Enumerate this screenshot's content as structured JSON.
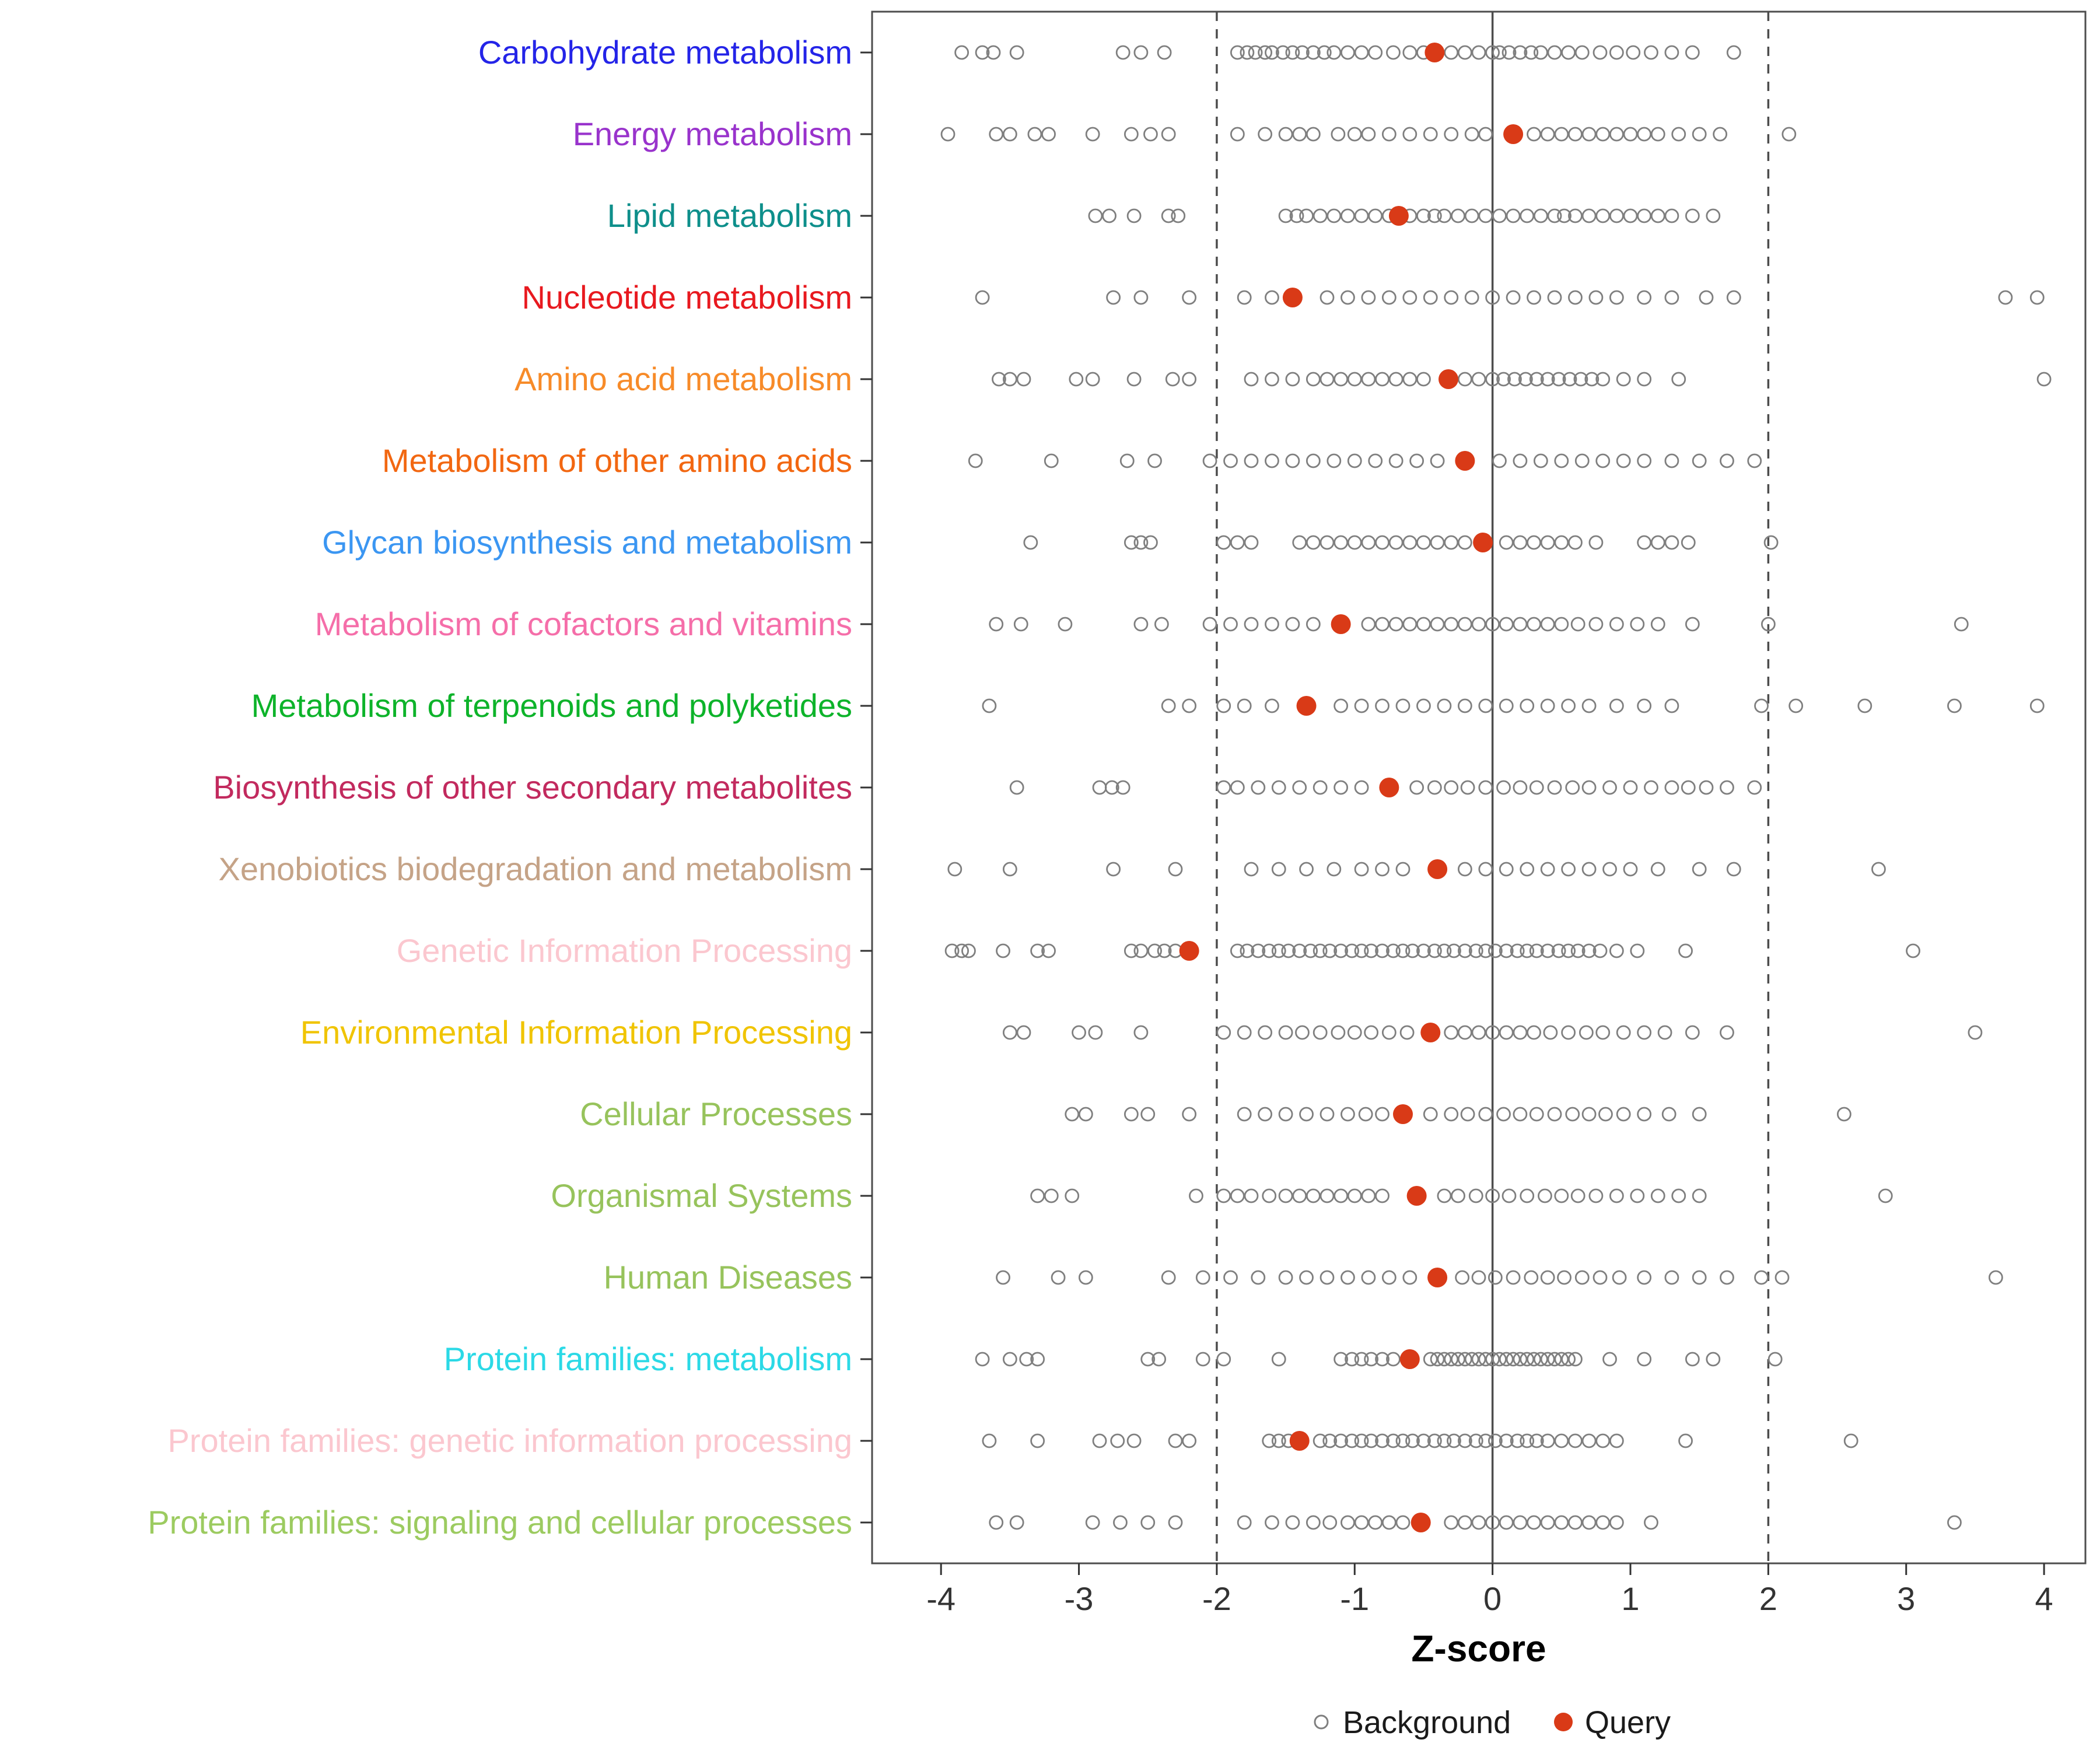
{
  "colors": {
    "background_point": "#7f7f7f",
    "query_point": "#d93a17",
    "panel_border": "#4d4d4d",
    "reference_line": "#4d4d4d",
    "axis_text": "#333333"
  },
  "chart_data": {
    "type": "scatter",
    "title": "",
    "xlabel": "Z-score",
    "ylabel": "",
    "xlim": [
      -4.5,
      4.3
    ],
    "x_ticks": [
      -4,
      -3,
      -2,
      -1,
      0,
      1,
      2,
      3,
      4
    ],
    "reference_lines": {
      "solid": [
        0
      ],
      "dashed": [
        -2,
        2
      ]
    },
    "legend": [
      {
        "label": "Background",
        "marker": "open-circle",
        "color": "#7f7f7f"
      },
      {
        "label": "Query",
        "marker": "filled-circle",
        "color": "#d93a17"
      }
    ],
    "categories": [
      {
        "label": "Carbohydrate metabolism",
        "color": "#2424e8",
        "query": -0.42,
        "background": [
          -3.85,
          -3.7,
          -3.62,
          -3.45,
          -2.68,
          -2.55,
          -2.38,
          -1.85,
          -1.78,
          -1.72,
          -1.65,
          -1.6,
          -1.52,
          -1.45,
          -1.38,
          -1.3,
          -1.22,
          -1.15,
          -1.05,
          -0.95,
          -0.85,
          -0.72,
          -0.6,
          -0.5,
          -0.3,
          -0.2,
          -0.1,
          0.0,
          0.05,
          0.12,
          0.2,
          0.28,
          0.35,
          0.45,
          0.55,
          0.65,
          0.78,
          0.9,
          1.02,
          1.15,
          1.3,
          1.45,
          1.75
        ]
      },
      {
        "label": "Energy metabolism",
        "color": "#9933cc",
        "query": 0.15,
        "background": [
          -3.95,
          -3.6,
          -3.5,
          -3.32,
          -3.22,
          -2.9,
          -2.62,
          -2.48,
          -2.35,
          -1.85,
          -1.65,
          -1.5,
          -1.4,
          -1.3,
          -1.12,
          -1.0,
          -0.9,
          -0.75,
          -0.6,
          -0.45,
          -0.3,
          -0.15,
          -0.05,
          0.3,
          0.4,
          0.5,
          0.6,
          0.7,
          0.8,
          0.9,
          1.0,
          1.1,
          1.2,
          1.35,
          1.5,
          1.65,
          2.15
        ]
      },
      {
        "label": "Lipid metabolism",
        "color": "#0e8f8b",
        "query": -0.68,
        "background": [
          -2.88,
          -2.78,
          -2.6,
          -2.35,
          -2.28,
          -1.5,
          -1.42,
          -1.35,
          -1.25,
          -1.15,
          -1.05,
          -0.95,
          -0.85,
          -0.75,
          -0.6,
          -0.5,
          -0.42,
          -0.35,
          -0.25,
          -0.15,
          -0.05,
          0.05,
          0.15,
          0.25,
          0.35,
          0.45,
          0.52,
          0.6,
          0.7,
          0.8,
          0.9,
          1.0,
          1.1,
          1.2,
          1.3,
          1.45,
          1.6
        ]
      },
      {
        "label": "Nucleotide metabolism",
        "color": "#e8191f",
        "query": -1.45,
        "background": [
          -3.7,
          -2.75,
          -2.55,
          -2.2,
          -1.8,
          -1.6,
          -1.2,
          -1.05,
          -0.9,
          -0.75,
          -0.6,
          -0.45,
          -0.3,
          -0.15,
          0.0,
          0.15,
          0.3,
          0.45,
          0.6,
          0.75,
          0.9,
          1.1,
          1.3,
          1.55,
          1.75,
          3.72,
          3.95
        ]
      },
      {
        "label": "Amino acid metabolism",
        "color": "#f78b29",
        "query": -0.32,
        "background": [
          -3.58,
          -3.5,
          -3.4,
          -3.02,
          -2.9,
          -2.6,
          -2.32,
          -2.2,
          -1.75,
          -1.6,
          -1.45,
          -1.3,
          -1.2,
          -1.1,
          -1.0,
          -0.9,
          -0.8,
          -0.7,
          -0.6,
          -0.5,
          -0.2,
          -0.1,
          0.0,
          0.08,
          0.16,
          0.24,
          0.32,
          0.4,
          0.48,
          0.56,
          0.64,
          0.72,
          0.8,
          0.95,
          1.1,
          1.35,
          4.0
        ]
      },
      {
        "label": "Metabolism of other amino acids",
        "color": "#f26711",
        "query": -0.2,
        "background": [
          -3.75,
          -3.2,
          -2.65,
          -2.45,
          -2.05,
          -1.9,
          -1.75,
          -1.6,
          -1.45,
          -1.3,
          -1.15,
          -1.0,
          -0.85,
          -0.7,
          -0.55,
          -0.4,
          0.05,
          0.2,
          0.35,
          0.5,
          0.65,
          0.8,
          0.95,
          1.1,
          1.3,
          1.5,
          1.7,
          1.9
        ]
      },
      {
        "label": "Glycan biosynthesis and metabolism",
        "color": "#3b96f2",
        "query": -0.07,
        "background": [
          -3.35,
          -2.62,
          -2.55,
          -2.48,
          -1.95,
          -1.85,
          -1.75,
          -1.4,
          -1.3,
          -1.2,
          -1.1,
          -1.0,
          -0.9,
          -0.8,
          -0.7,
          -0.6,
          -0.5,
          -0.4,
          -0.3,
          -0.2,
          0.1,
          0.2,
          0.3,
          0.4,
          0.5,
          0.6,
          0.75,
          1.1,
          1.2,
          1.3,
          1.42,
          2.02
        ]
      },
      {
        "label": "Metabolism of cofactors and vitamins",
        "color": "#f56ea9",
        "query": -1.1,
        "background": [
          -3.6,
          -3.42,
          -3.1,
          -2.55,
          -2.4,
          -2.05,
          -1.9,
          -1.75,
          -1.6,
          -1.45,
          -1.3,
          -0.9,
          -0.8,
          -0.7,
          -0.6,
          -0.5,
          -0.4,
          -0.3,
          -0.2,
          -0.1,
          0.0,
          0.1,
          0.2,
          0.3,
          0.4,
          0.5,
          0.62,
          0.75,
          0.9,
          1.05,
          1.2,
          1.45,
          2.0,
          3.4
        ]
      },
      {
        "label": "Metabolism of terpenoids and polyketides",
        "color": "#0db32a",
        "query": -1.35,
        "background": [
          -3.65,
          -2.35,
          -2.2,
          -1.95,
          -1.8,
          -1.6,
          -1.1,
          -0.95,
          -0.8,
          -0.65,
          -0.5,
          -0.35,
          -0.2,
          -0.05,
          0.1,
          0.25,
          0.4,
          0.55,
          0.7,
          0.9,
          1.1,
          1.3,
          1.95,
          2.2,
          2.7,
          3.35,
          3.95
        ]
      },
      {
        "label": "Biosynthesis of other secondary metabolites",
        "color": "#c22a5e",
        "query": -0.75,
        "background": [
          -3.45,
          -2.85,
          -2.76,
          -2.68,
          -1.95,
          -1.85,
          -1.7,
          -1.55,
          -1.4,
          -1.25,
          -1.1,
          -0.95,
          -0.55,
          -0.42,
          -0.3,
          -0.18,
          -0.05,
          0.08,
          0.2,
          0.32,
          0.45,
          0.58,
          0.7,
          0.85,
          1.0,
          1.15,
          1.3,
          1.42,
          1.55,
          1.7,
          1.9
        ]
      },
      {
        "label": "Xenobiotics biodegradation and metabolism",
        "color": "#c5a387",
        "query": -0.4,
        "background": [
          -3.9,
          -3.5,
          -2.75,
          -2.3,
          -1.75,
          -1.55,
          -1.35,
          -1.15,
          -0.95,
          -0.8,
          -0.65,
          -0.2,
          -0.05,
          0.1,
          0.25,
          0.4,
          0.55,
          0.7,
          0.85,
          1.0,
          1.2,
          1.5,
          1.75,
          2.8
        ]
      },
      {
        "label": "Genetic Information Processing",
        "color": "#fbc7cf",
        "query": -2.2,
        "background": [
          -3.92,
          -3.85,
          -3.8,
          -3.55,
          -3.3,
          -3.22,
          -2.62,
          -2.55,
          -2.45,
          -2.38,
          -2.3,
          -1.85,
          -1.78,
          -1.7,
          -1.62,
          -1.55,
          -1.48,
          -1.4,
          -1.32,
          -1.25,
          -1.18,
          -1.1,
          -1.02,
          -0.95,
          -0.88,
          -0.8,
          -0.72,
          -0.65,
          -0.58,
          -0.5,
          -0.42,
          -0.35,
          -0.28,
          -0.2,
          -0.12,
          -0.05,
          0.02,
          0.1,
          0.18,
          0.25,
          0.32,
          0.4,
          0.48,
          0.55,
          0.62,
          0.7,
          0.78,
          0.9,
          1.05,
          1.4,
          3.05
        ]
      },
      {
        "label": "Environmental Information Processing",
        "color": "#f0c400",
        "query": -0.45,
        "background": [
          -3.5,
          -3.4,
          -3.0,
          -2.88,
          -2.55,
          -1.95,
          -1.8,
          -1.65,
          -1.5,
          -1.38,
          -1.25,
          -1.12,
          -1.0,
          -0.88,
          -0.75,
          -0.62,
          -0.3,
          -0.2,
          -0.1,
          0.0,
          0.1,
          0.2,
          0.3,
          0.42,
          0.55,
          0.68,
          0.8,
          0.95,
          1.1,
          1.25,
          1.45,
          1.7,
          3.5
        ]
      },
      {
        "label": "Cellular Processes",
        "color": "#97c35c",
        "query": -0.65,
        "background": [
          -3.05,
          -2.95,
          -2.62,
          -2.5,
          -2.2,
          -1.8,
          -1.65,
          -1.5,
          -1.35,
          -1.2,
          -1.05,
          -0.92,
          -0.8,
          -0.45,
          -0.3,
          -0.18,
          -0.05,
          0.08,
          0.2,
          0.32,
          0.45,
          0.58,
          0.7,
          0.82,
          0.95,
          1.1,
          1.28,
          1.5,
          2.55
        ]
      },
      {
        "label": "Organismal Systems",
        "color": "#97c35c",
        "query": -0.55,
        "background": [
          -3.3,
          -3.2,
          -3.05,
          -2.15,
          -1.95,
          -1.85,
          -1.75,
          -1.62,
          -1.5,
          -1.4,
          -1.3,
          -1.2,
          -1.1,
          -1.0,
          -0.9,
          -0.8,
          -0.35,
          -0.25,
          -0.12,
          0.0,
          0.12,
          0.25,
          0.38,
          0.5,
          0.62,
          0.75,
          0.9,
          1.05,
          1.2,
          1.35,
          1.5,
          2.85
        ]
      },
      {
        "label": "Human Diseases",
        "color": "#97c35c",
        "query": -0.4,
        "background": [
          -3.55,
          -3.15,
          -2.95,
          -2.35,
          -2.1,
          -1.9,
          -1.7,
          -1.5,
          -1.35,
          -1.2,
          -1.05,
          -0.9,
          -0.75,
          -0.6,
          -0.22,
          -0.1,
          0.02,
          0.15,
          0.28,
          0.4,
          0.52,
          0.65,
          0.78,
          0.92,
          1.1,
          1.3,
          1.5,
          1.7,
          1.95,
          2.1,
          3.65
        ]
      },
      {
        "label": "Protein families: metabolism",
        "color": "#2bd9e6",
        "query": -0.6,
        "background": [
          -3.7,
          -3.5,
          -3.38,
          -3.3,
          -2.5,
          -2.42,
          -2.1,
          -1.95,
          -1.55,
          -1.1,
          -1.02,
          -0.95,
          -0.88,
          -0.8,
          -0.72,
          -0.45,
          -0.4,
          -0.35,
          -0.3,
          -0.25,
          -0.2,
          -0.15,
          -0.1,
          -0.05,
          0.0,
          0.05,
          0.1,
          0.15,
          0.2,
          0.25,
          0.3,
          0.35,
          0.4,
          0.45,
          0.5,
          0.55,
          0.6,
          0.85,
          1.1,
          1.45,
          1.6,
          2.05
        ]
      },
      {
        "label": "Protein families: genetic information processing",
        "color": "#fbc7cf",
        "query": -1.4,
        "background": [
          -3.65,
          -3.3,
          -2.85,
          -2.72,
          -2.6,
          -2.3,
          -2.2,
          -1.62,
          -1.55,
          -1.48,
          -1.25,
          -1.18,
          -1.1,
          -1.02,
          -0.95,
          -0.88,
          -0.8,
          -0.72,
          -0.65,
          -0.58,
          -0.5,
          -0.42,
          -0.35,
          -0.28,
          -0.2,
          -0.12,
          -0.05,
          0.02,
          0.1,
          0.18,
          0.25,
          0.32,
          0.4,
          0.5,
          0.6,
          0.7,
          0.8,
          0.9,
          1.4,
          2.6
        ]
      },
      {
        "label": "Protein families: signaling and cellular processes",
        "color": "#9ccb60",
        "query": -0.52,
        "background": [
          -3.6,
          -3.45,
          -2.9,
          -2.7,
          -2.5,
          -2.3,
          -1.8,
          -1.6,
          -1.45,
          -1.3,
          -1.18,
          -1.05,
          -0.95,
          -0.85,
          -0.75,
          -0.65,
          -0.3,
          -0.2,
          -0.1,
          0.0,
          0.1,
          0.2,
          0.3,
          0.4,
          0.5,
          0.6,
          0.7,
          0.8,
          0.9,
          1.15,
          3.35
        ]
      }
    ]
  }
}
